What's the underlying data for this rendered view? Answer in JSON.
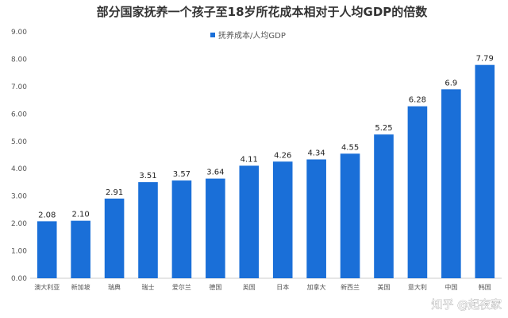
{
  "chart_data": {
    "type": "bar",
    "title": "部分国家抚养一个孩子至18岁所花成本相对于人均GDP的倍数",
    "legend": "抚养成本/人均GDP",
    "legend_position": "top-center",
    "ylim": [
      0,
      9
    ],
    "yticks": [
      "0.00",
      "1.00",
      "2.00",
      "3.00",
      "4.00",
      "5.00",
      "6.00",
      "7.00",
      "8.00",
      "9.00"
    ],
    "grid": false,
    "bar_color": "#1a6fd8",
    "categories": [
      "澳大利亚",
      "新加坡",
      "瑞典",
      "瑞士",
      "爱尔兰",
      "德国",
      "英国",
      "日本",
      "加拿大",
      "新西兰",
      "美国",
      "意大利",
      "中国",
      "韩国"
    ],
    "values": [
      2.08,
      2.1,
      2.91,
      3.51,
      3.57,
      3.64,
      4.11,
      4.26,
      4.34,
      4.55,
      5.25,
      6.28,
      6.9,
      7.79
    ],
    "value_labels": [
      "2.08",
      "2.10",
      "2.91",
      "3.51",
      "3.57",
      "3.64",
      "4.11",
      "4.26",
      "4.34",
      "4.55",
      "5.25",
      "6.28",
      "6.9",
      "7.79"
    ]
  },
  "watermark": "知乎 @起夜家"
}
